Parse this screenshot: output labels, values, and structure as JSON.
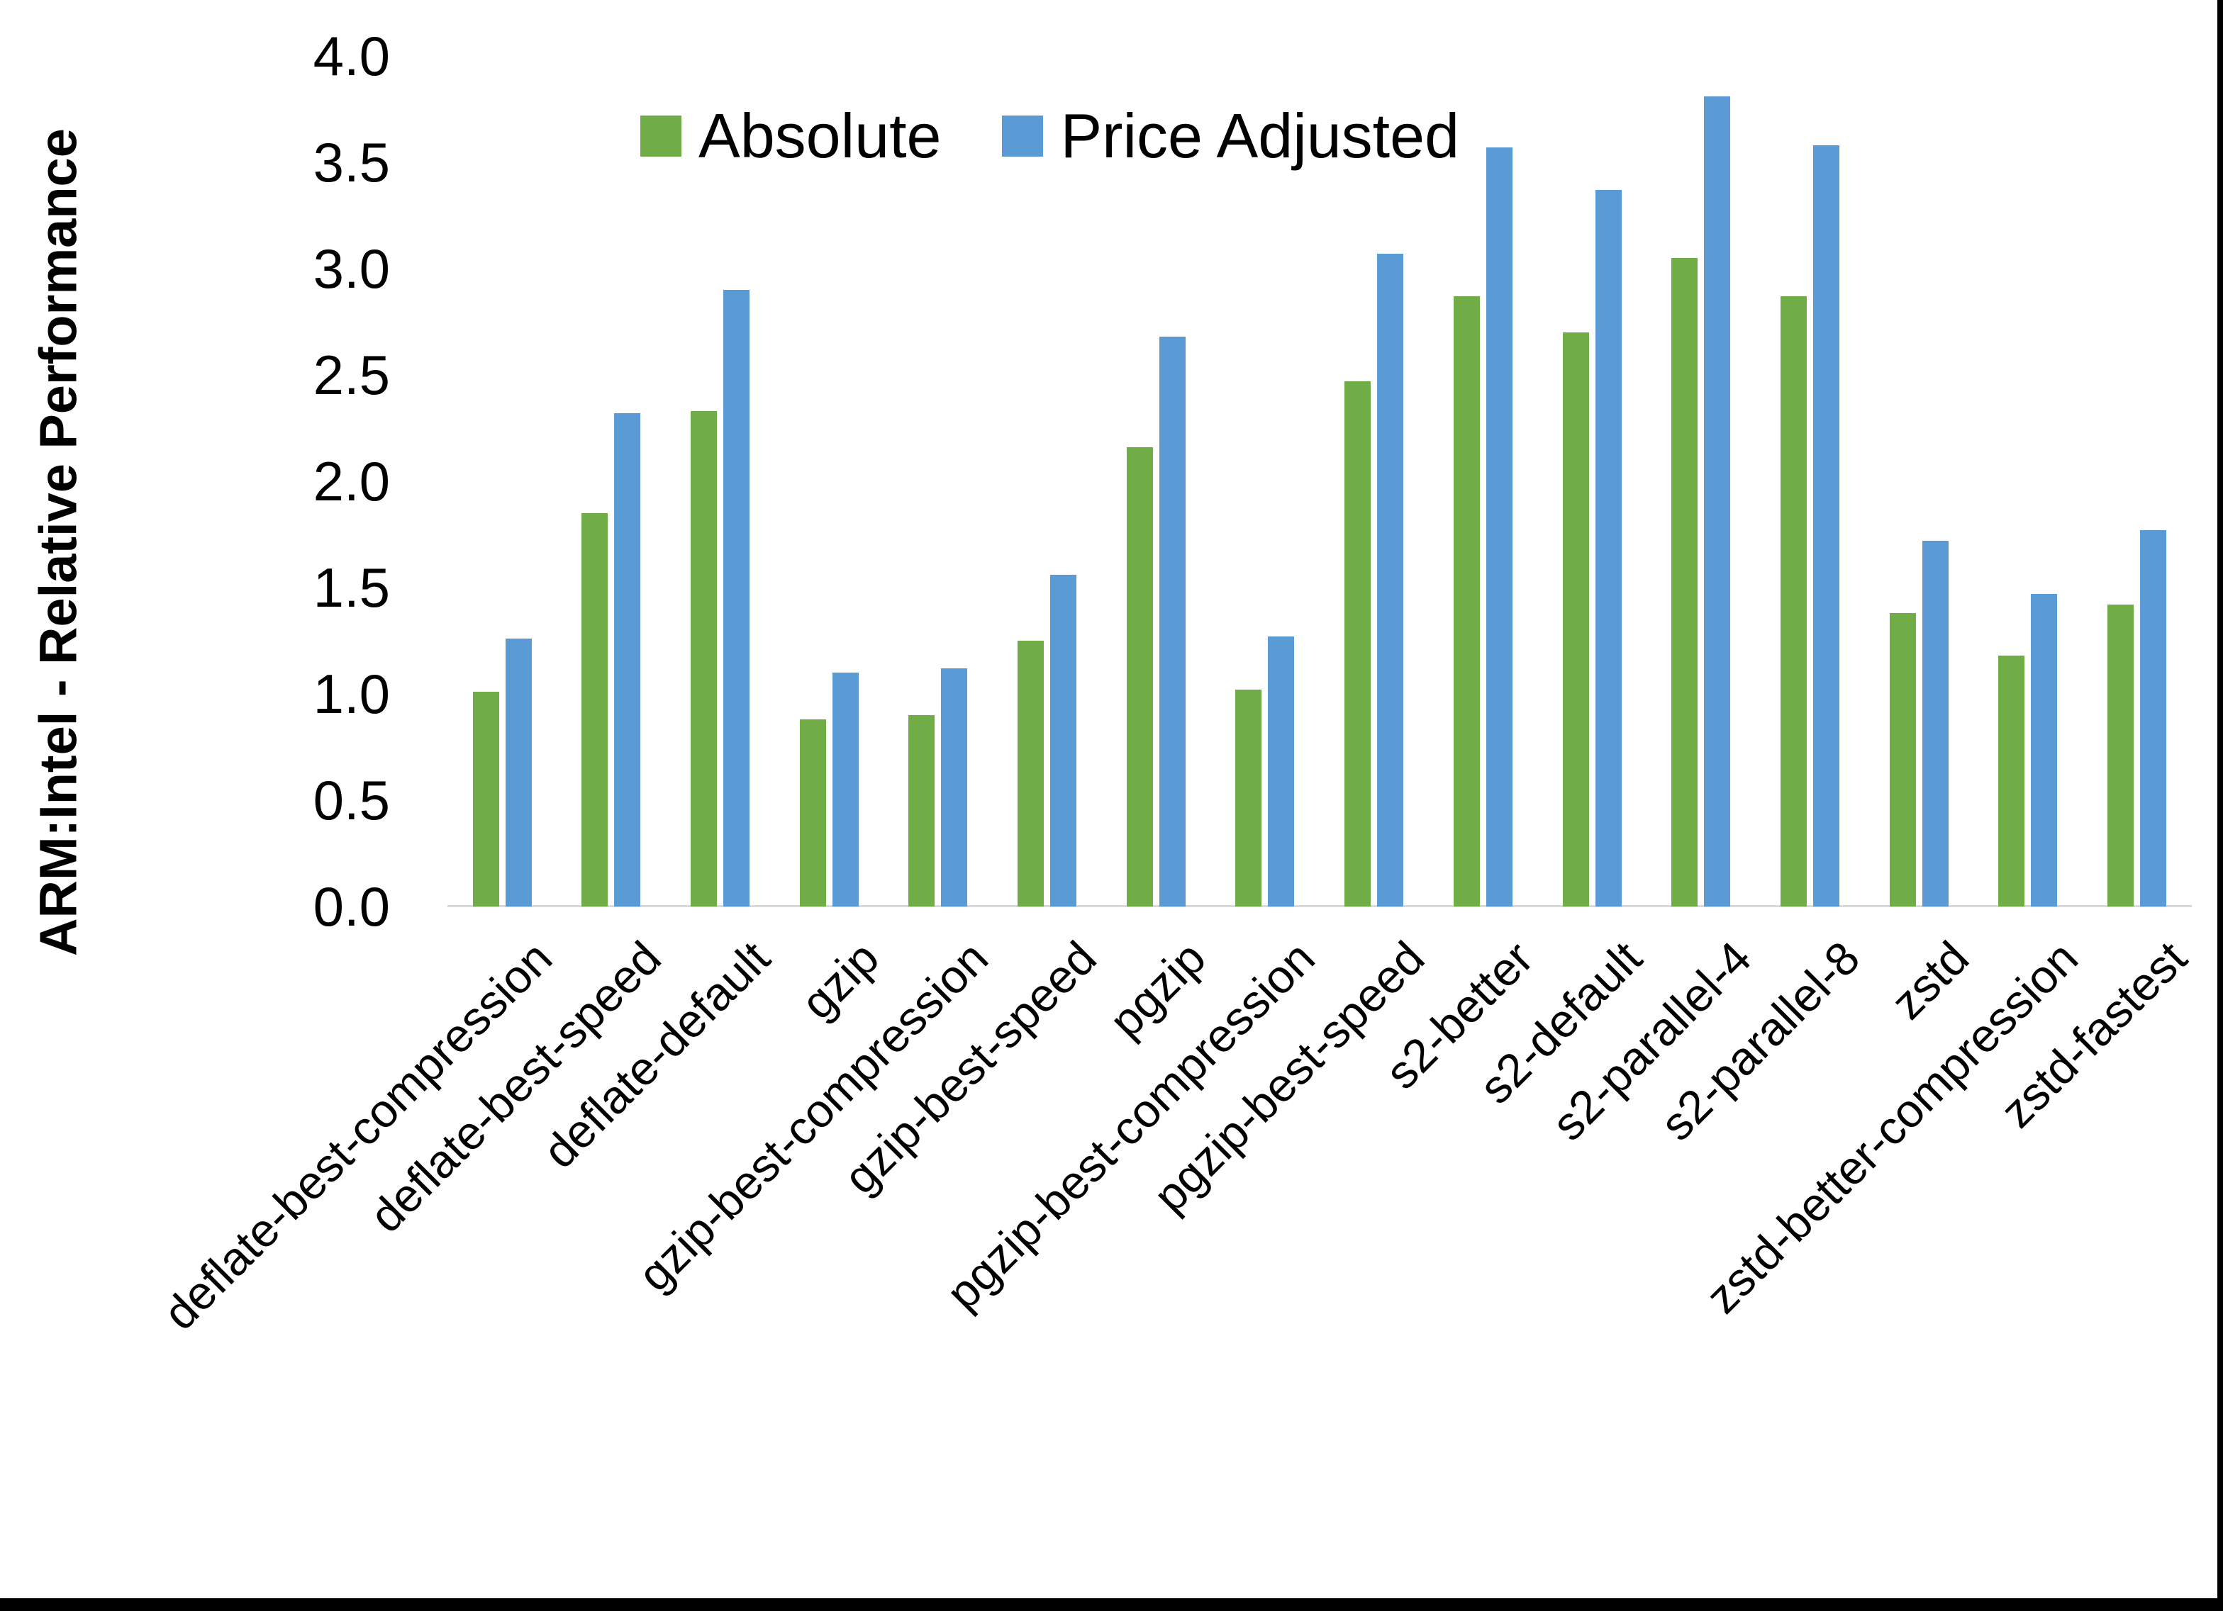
{
  "chart_data": {
    "type": "bar",
    "title": "",
    "xlabel": "",
    "ylabel": "ARM:Intel - Relative Performance",
    "ylim": [
      0.0,
      4.0
    ],
    "ytick_step": 0.5,
    "yticks": [
      "0.0",
      "0.5",
      "1.0",
      "1.5",
      "2.0",
      "2.5",
      "3.0",
      "3.5",
      "4.0"
    ],
    "grid": false,
    "legend_position": "top-inside",
    "categories": [
      "deflate-best-compression",
      "deflate-best-speed",
      "deflate-default",
      "gzip",
      "gzip-best-compression",
      "gzip-best-speed",
      "pgzip",
      "pgzip-best-compression",
      "pgzip-best-speed",
      "s2-better",
      "s2-default",
      "s2-parallel-4",
      "s2-parallel-8",
      "zstd",
      "zstd-better-compression",
      "zstd-fastest"
    ],
    "series": [
      {
        "name": "Absolute",
        "color": "#70AD47",
        "values": [
          1.01,
          1.85,
          2.33,
          0.88,
          0.9,
          1.25,
          2.16,
          1.02,
          2.47,
          2.87,
          2.7,
          3.05,
          2.87,
          1.38,
          1.18,
          1.42
        ]
      },
      {
        "name": "Price Adjusted",
        "color": "#5B9BD5",
        "values": [
          1.26,
          2.32,
          2.9,
          1.1,
          1.12,
          1.56,
          2.68,
          1.27,
          3.07,
          3.57,
          3.37,
          3.81,
          3.58,
          1.72,
          1.47,
          1.77
        ]
      }
    ]
  },
  "axis": {
    "baseline_color": "#D9D9D9",
    "text_color": "#000000"
  },
  "frame": {
    "background": "#FFFFFF",
    "border_color": "#000000"
  }
}
